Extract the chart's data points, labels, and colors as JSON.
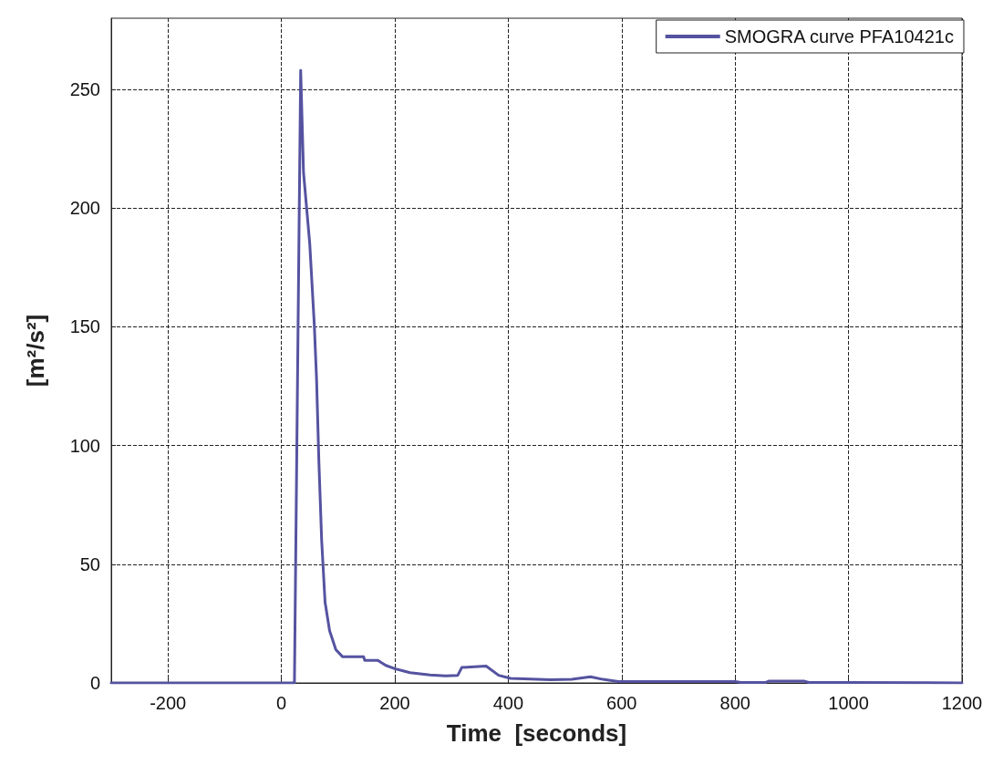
{
  "chart_data": {
    "type": "line",
    "xlabel": "Time  [seconds]",
    "ylabel": "[m²/s²]",
    "xlim": [
      -300,
      1200
    ],
    "xticks": [
      -200,
      0,
      200,
      400,
      600,
      800,
      1000,
      1200
    ],
    "ylim": [
      0,
      280
    ],
    "yticks": [
      0,
      50,
      100,
      150,
      200,
      250
    ],
    "grid": true,
    "legend": "top right",
    "line_style": "dashed",
    "series": [
      {
        "name": "SMOGRA curve PFA10421c",
        "color": "#5553a0",
        "line_style": "solid",
        "x": [
          -300,
          23,
          34,
          39,
          50,
          58,
          62,
          66,
          71,
          77,
          85,
          96,
          108,
          145,
          147,
          170,
          184,
          200,
          216,
          227,
          262,
          289,
          311,
          318,
          361,
          383,
          404,
          475,
          512,
          545,
          567,
          594,
          702,
          800,
          810,
          854,
          860,
          921,
          930,
          1000,
          1200
        ],
        "values": [
          0,
          0,
          258,
          215,
          185,
          151,
          128,
          94,
          60,
          34,
          22,
          14,
          11,
          11,
          9.5,
          9.5,
          7.4,
          6,
          5,
          4.3,
          3.4,
          3,
          3.2,
          6.5,
          7.1,
          3.2,
          1.9,
          1.3,
          1.5,
          2.6,
          1.5,
          0.6,
          0.6,
          0.6,
          0.2,
          0.2,
          0.8,
          0.8,
          0.2,
          0.2,
          0
        ]
      }
    ]
  }
}
